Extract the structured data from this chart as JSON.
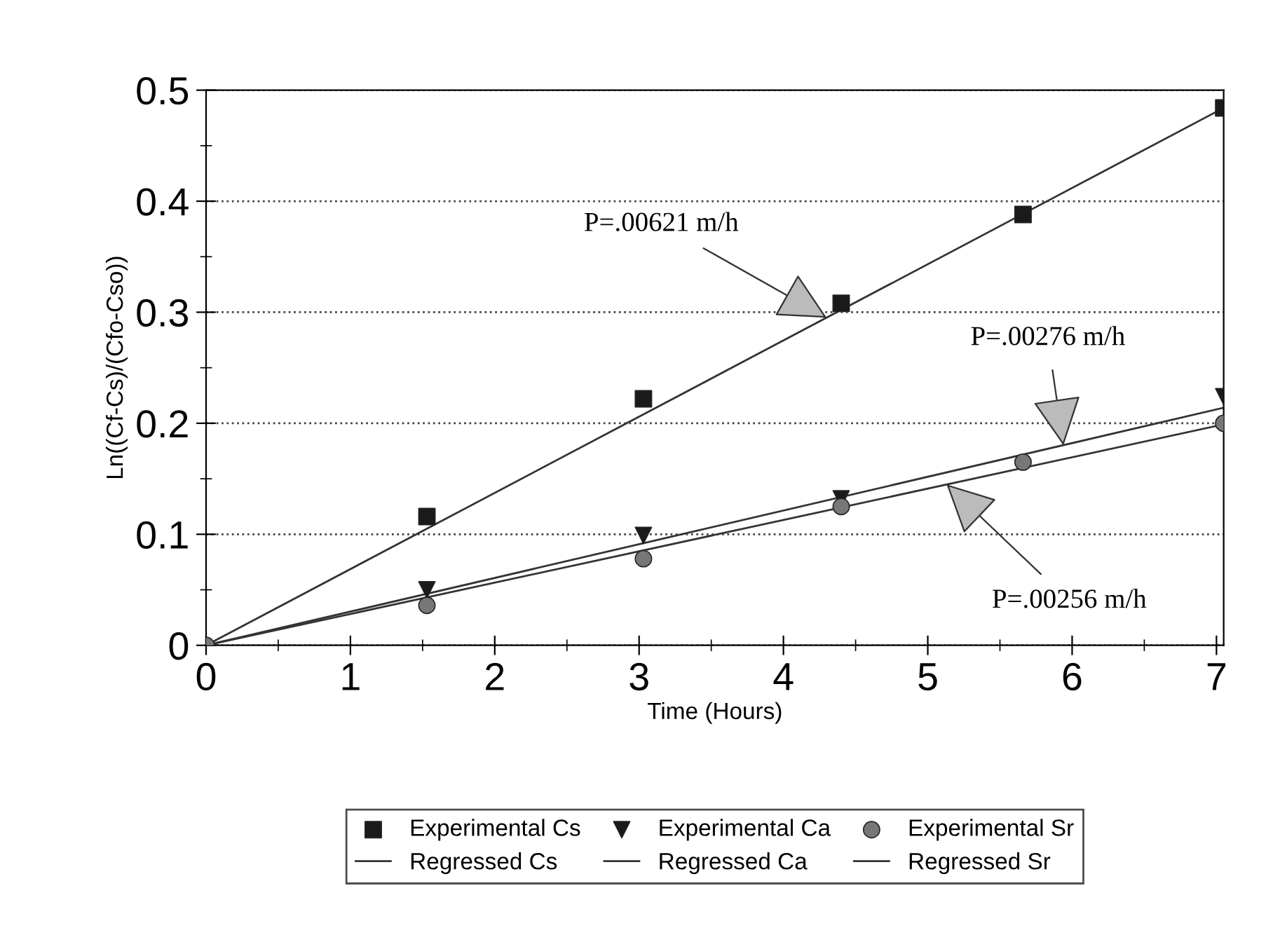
{
  "chart_data": {
    "type": "scatter",
    "xlabel": "Time (Hours)",
    "ylabel": "Ln((Cf-Cs)/(Cfo-Cso))",
    "xlim": [
      0,
      7.05
    ],
    "ylim": [
      0,
      0.5
    ],
    "xticks": [
      0,
      1,
      2,
      3,
      4,
      5,
      6,
      7
    ],
    "yticks": [
      0,
      {
        "value": 0.1,
        "label": "0.1"
      },
      {
        "value": 0.2,
        "label": "0.2"
      },
      {
        "value": 0.3,
        "label": "0.3"
      },
      {
        "value": 0.4,
        "label": "0.4"
      },
      {
        "value": 0.5,
        "label": "0.5"
      }
    ],
    "grid": "y",
    "legend": "bottom",
    "series": [
      {
        "name": "Experimental Cs",
        "marker": "square",
        "color": "#1a1a1a",
        "x": [
          1.53,
          3.03,
          4.4,
          5.66,
          7.05
        ],
        "values": [
          0.116,
          0.222,
          0.308,
          0.388,
          0.484
        ]
      },
      {
        "name": "Regressed Cs",
        "type": "line",
        "marker": "none",
        "color": "#333333",
        "x": [
          0,
          7.05
        ],
        "values": [
          0,
          0.484
        ]
      },
      {
        "name": "Experimental Ca",
        "marker": "triangle",
        "color": "#1a1a1a",
        "x": [
          1.53,
          3.03,
          4.4,
          5.66,
          7.05
        ],
        "values": [
          0.05,
          0.099,
          0.132,
          null,
          0.224
        ]
      },
      {
        "name": "Regressed Ca",
        "type": "line",
        "marker": "none",
        "color": "#333333",
        "x": [
          0,
          7.05
        ],
        "values": [
          0,
          0.214
        ]
      },
      {
        "name": "Experimental Sr",
        "marker": "circle",
        "color": "#777777",
        "x": [
          0,
          1.53,
          3.03,
          4.4,
          5.66,
          7.05
        ],
        "values": [
          0,
          0.036,
          0.078,
          0.125,
          0.165,
          0.2
        ]
      },
      {
        "name": "Regressed Sr",
        "type": "line",
        "marker": "none",
        "color": "#333333",
        "x": [
          0,
          7.05
        ],
        "values": [
          0,
          0.199
        ]
      }
    ],
    "annotations": [
      {
        "text": "P=.00621 m/h",
        "x": 4.3,
        "y": 0.295
      },
      {
        "text": "P=.00276 m/h",
        "x": 5.94,
        "y": 0.18
      },
      {
        "text": "P=.00256 m/h",
        "x": 5.13,
        "y": 0.145
      }
    ]
  }
}
